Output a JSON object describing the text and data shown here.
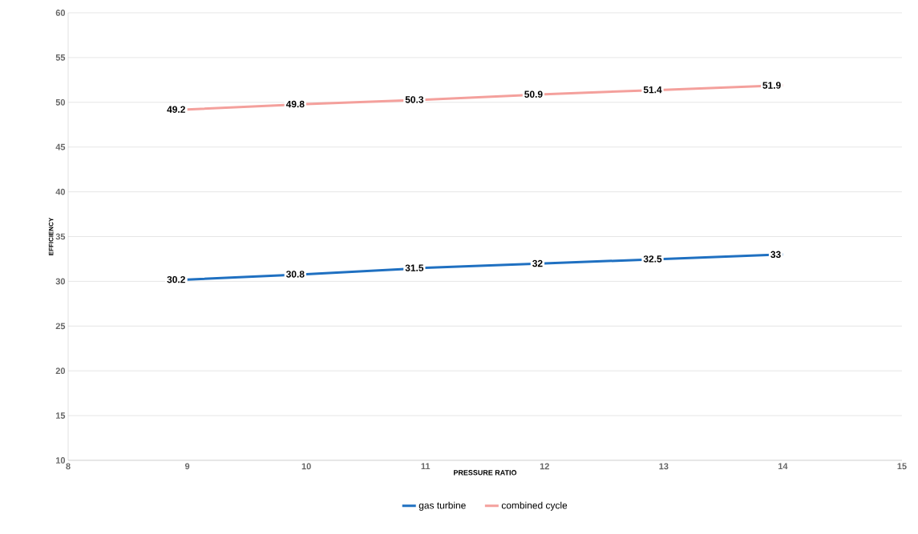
{
  "chart_data": {
    "type": "line",
    "xlabel": "PRESSURE RATIO",
    "ylabel": "EFFICIENCY",
    "x": [
      9,
      10,
      11,
      12,
      13,
      14
    ],
    "series": [
      {
        "name": "gas turbine",
        "color": "#1f70c1",
        "values": [
          30.2,
          30.8,
          31.5,
          32,
          32.5,
          33
        ]
      },
      {
        "name": "combined cycle",
        "color": "#f4a09c",
        "values": [
          49.2,
          49.8,
          50.3,
          50.9,
          51.4,
          51.9
        ]
      }
    ],
    "xlim": [
      8,
      15
    ],
    "xticks": [
      8,
      9,
      10,
      11,
      12,
      13,
      14,
      15
    ],
    "ylim": [
      10,
      60
    ],
    "yticks": [
      10,
      15,
      20,
      25,
      30,
      35,
      40,
      45,
      50,
      55,
      60
    ],
    "grid": "y",
    "legend": "bottom",
    "marker": "none",
    "line_style": "solid",
    "data_labels": true
  }
}
